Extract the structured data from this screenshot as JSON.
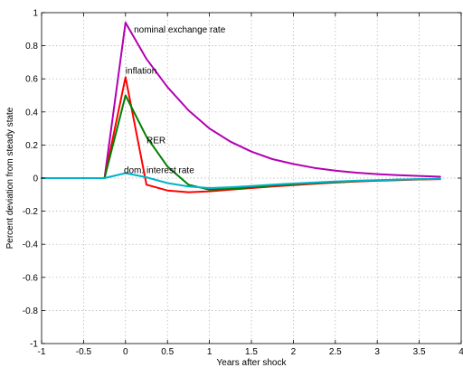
{
  "chart_data": {
    "type": "line",
    "title": "",
    "xlabel": "Years after shock",
    "ylabel": "Percent deviation from steady state",
    "xlim": [
      -1,
      4
    ],
    "ylim": [
      -1,
      1
    ],
    "xticks": [
      -1,
      -0.5,
      0,
      0.5,
      1,
      1.5,
      2,
      2.5,
      3,
      3.5,
      4
    ],
    "xtick_labels": [
      "-1",
      "-0.5",
      "0",
      "0.5",
      "1",
      "1.5",
      "2",
      "2.5",
      "3",
      "3.5",
      "4"
    ],
    "yticks": [
      -1,
      -0.8,
      -0.6,
      -0.4,
      -0.2,
      0,
      0.2,
      0.4,
      0.6,
      0.8,
      1
    ],
    "ytick_labels": [
      "-1",
      "-0.8",
      "-0.6",
      "-0.4",
      "-0.2",
      "0",
      "0.2",
      "0.4",
      "0.6",
      "0.8",
      "1"
    ],
    "grid": true,
    "series": [
      {
        "name": "nominal exchange rate",
        "color": "#b300b3",
        "x": [
          -1,
          -0.25,
          0,
          0.25,
          0.5,
          0.75,
          1,
          1.25,
          1.5,
          1.75,
          2,
          2.25,
          2.5,
          2.75,
          3,
          3.25,
          3.5,
          3.75
        ],
        "y": [
          0,
          0,
          0.94,
          0.72,
          0.55,
          0.41,
          0.3,
          0.22,
          0.16,
          0.115,
          0.085,
          0.062,
          0.045,
          0.033,
          0.024,
          0.018,
          0.013,
          0.008
        ]
      },
      {
        "name": "inflation",
        "color": "#ff0000",
        "x": [
          -1,
          -0.25,
          0,
          0.25,
          0.5,
          0.75,
          1,
          1.25,
          1.5,
          1.75,
          2,
          2.25,
          2.5,
          2.75,
          3,
          3.25,
          3.5,
          3.75
        ],
        "y": [
          0,
          0,
          0.61,
          -0.04,
          -0.075,
          -0.085,
          -0.08,
          -0.07,
          -0.06,
          -0.05,
          -0.042,
          -0.034,
          -0.027,
          -0.021,
          -0.016,
          -0.012,
          -0.008,
          -0.006
        ]
      },
      {
        "name": "RER",
        "color": "#008000",
        "x": [
          -1,
          -0.25,
          0,
          0.25,
          0.5,
          0.75,
          1,
          1.25,
          1.5,
          1.75,
          2,
          2.25,
          2.5,
          2.75,
          3,
          3.25,
          3.5,
          3.75
        ],
        "y": [
          0,
          0,
          0.5,
          0.25,
          0.07,
          -0.04,
          -0.07,
          -0.065,
          -0.055,
          -0.045,
          -0.037,
          -0.03,
          -0.024,
          -0.018,
          -0.014,
          -0.01,
          -0.007,
          -0.005
        ]
      },
      {
        "name": "dom. interest rate",
        "color": "#00b3cc",
        "x": [
          -1,
          -0.25,
          0,
          0.25,
          0.5,
          0.75,
          1,
          1.25,
          1.5,
          1.75,
          2,
          2.25,
          2.5,
          2.75,
          3,
          3.25,
          3.5,
          3.75
        ],
        "y": [
          0,
          0,
          0.03,
          0.005,
          -0.03,
          -0.05,
          -0.06,
          -0.055,
          -0.048,
          -0.04,
          -0.033,
          -0.027,
          -0.021,
          -0.016,
          -0.012,
          -0.009,
          -0.006,
          -0.004
        ]
      }
    ],
    "annotations": [
      {
        "text": "nominal exchange rate",
        "x": 0.1,
        "y": 0.9
      },
      {
        "text": "inflation",
        "x": 0.0,
        "y": 0.65
      },
      {
        "text": "RER",
        "x": 0.25,
        "y": 0.23
      },
      {
        "text": "dom. interest rate",
        "x": -0.02,
        "y": 0.05
      }
    ]
  }
}
